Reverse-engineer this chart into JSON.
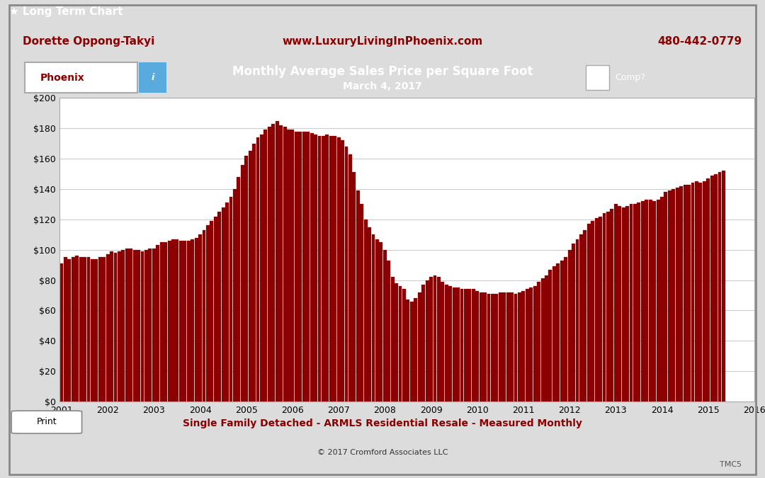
{
  "title_line1": "Monthly Average Sales Price per Square Foot",
  "title_line2": "March 4, 2017",
  "header_left": "Dorette Oppong-Takyi",
  "header_center": "www.LuxuryLivingInPhoenix.com",
  "header_right": "480-442-0779",
  "footer_label": "Single Family Detached - ARMLS Residential Resale - Measured Monthly",
  "footer_copyright": "© 2017 Cromford Associates LLC",
  "footer_tmc": "TMC5",
  "location_label": "Phoenix",
  "comp_label": "Comp?",
  "print_label": "Print",
  "bar_color": "#8B0000",
  "chart_bg_color": "#ffffff",
  "header_bg_color": "#8B0000",
  "top_bar_color": "#3a3a3a",
  "top_bar_label": "★ Long Term Chart",
  "outer_bg_color": "#dcdcdc",
  "ylim": [
    0,
    200
  ],
  "yticks": [
    0,
    20,
    40,
    60,
    80,
    100,
    120,
    140,
    160,
    180,
    200
  ],
  "values": [
    91,
    95,
    94,
    95,
    96,
    95,
    95,
    95,
    94,
    94,
    95,
    95,
    97,
    99,
    98,
    99,
    100,
    101,
    101,
    100,
    100,
    99,
    100,
    101,
    101,
    103,
    105,
    105,
    106,
    107,
    107,
    106,
    106,
    106,
    107,
    108,
    110,
    113,
    116,
    119,
    122,
    125,
    128,
    131,
    135,
    140,
    148,
    156,
    162,
    165,
    170,
    174,
    176,
    179,
    181,
    183,
    185,
    182,
    181,
    179,
    179,
    178,
    178,
    178,
    178,
    177,
    176,
    175,
    175,
    176,
    175,
    175,
    174,
    172,
    168,
    163,
    151,
    139,
    130,
    120,
    115,
    110,
    107,
    105,
    100,
    93,
    82,
    78,
    76,
    74,
    67,
    66,
    68,
    72,
    77,
    80,
    82,
    83,
    82,
    79,
    77,
    76,
    75,
    75,
    74,
    74,
    74,
    74,
    73,
    72,
    72,
    71,
    71,
    71,
    72,
    72,
    72,
    72,
    71,
    72,
    73,
    74,
    75,
    76,
    79,
    81,
    83,
    87,
    89,
    91,
    93,
    95,
    100,
    104,
    107,
    110,
    113,
    117,
    119,
    121,
    122,
    124,
    125,
    127,
    130,
    129,
    128,
    129,
    130,
    130,
    131,
    132,
    133,
    133,
    132,
    133,
    135,
    138,
    139,
    140,
    141,
    142,
    143,
    143,
    144,
    145,
    144,
    145,
    147,
    149,
    150,
    151,
    152
  ],
  "x_tick_years": [
    "2001",
    "2002",
    "2003",
    "2004",
    "2005",
    "2006",
    "2007",
    "2008",
    "2009",
    "2010",
    "2011",
    "2012",
    "2013",
    "2014",
    "2015",
    "2016"
  ],
  "grid_color": "#cccccc",
  "spine_color": "#aaaaaa"
}
